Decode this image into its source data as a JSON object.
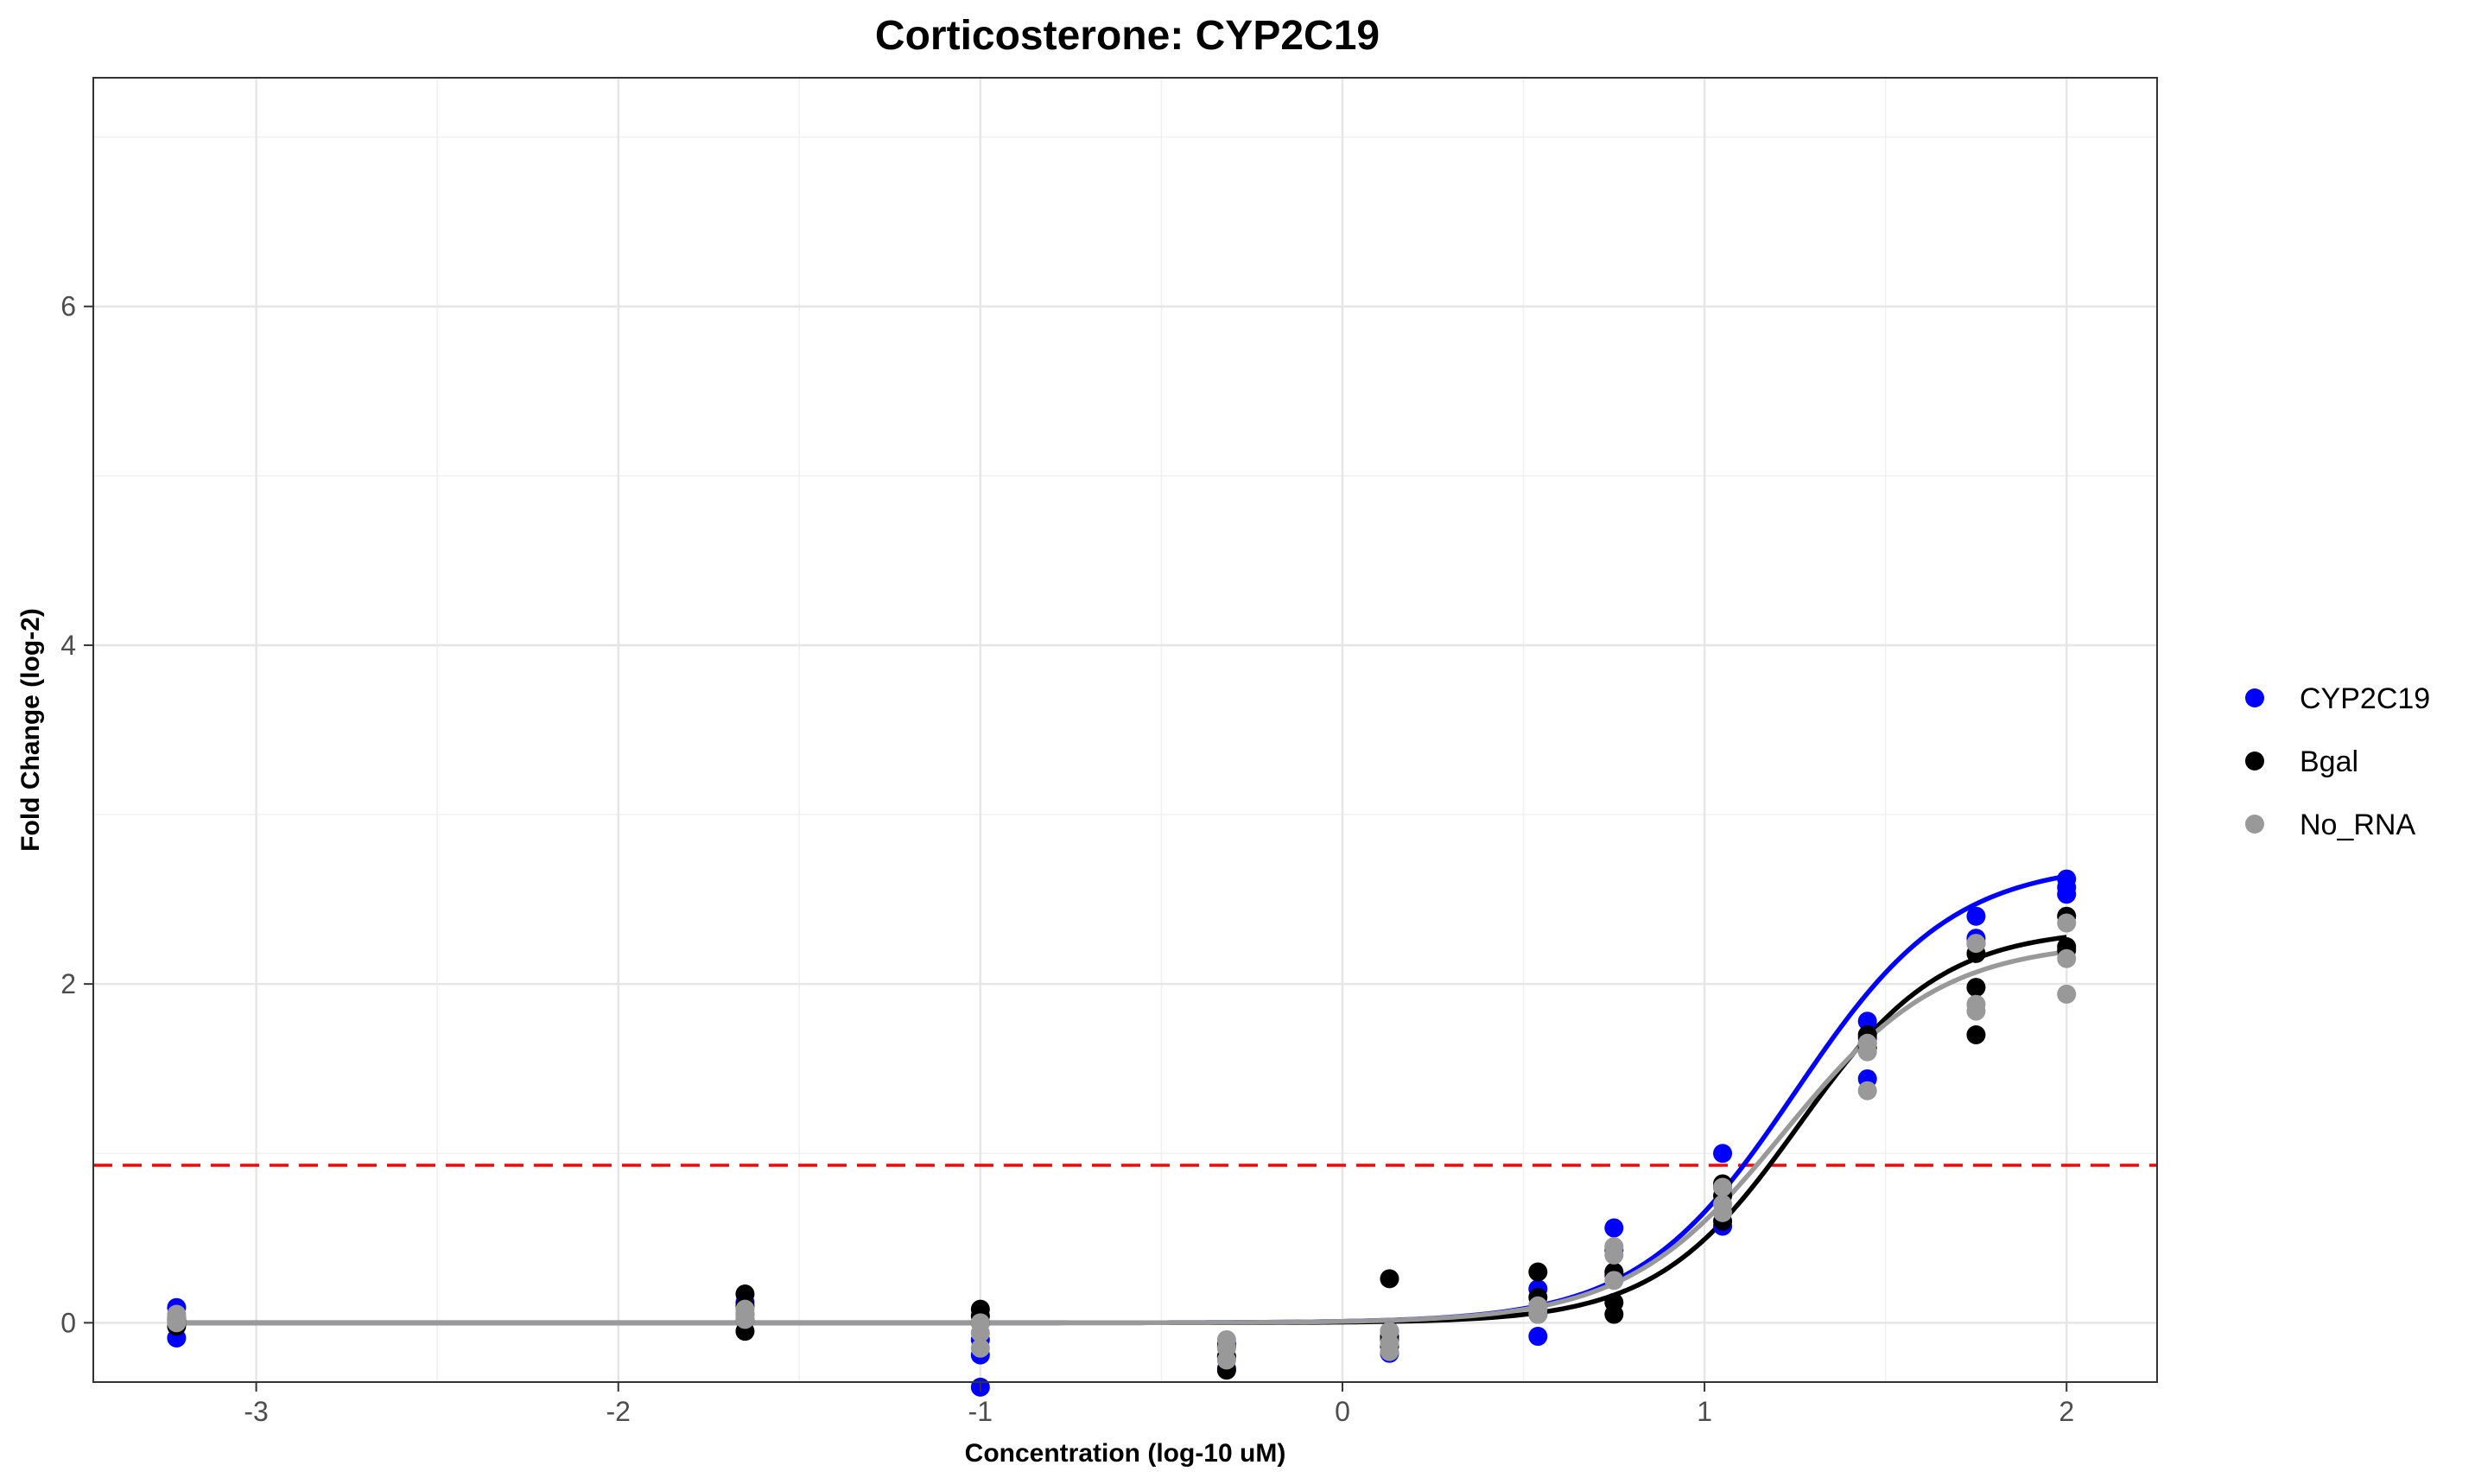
{
  "chart_data": {
    "type": "scatter",
    "title": "Corticosterone: CYP2C19",
    "xlabel": "Concentration (log-10 uM)",
    "ylabel": "Fold Change (log-2)",
    "xlim": [
      -3.45,
      2.25
    ],
    "ylim": [
      -0.35,
      7.35
    ],
    "x_ticks": [
      -3,
      -2,
      -1,
      0,
      1,
      2
    ],
    "x_tick_labels": [
      "-3",
      "-2",
      "-1",
      "0",
      "1",
      "2"
    ],
    "y_ticks": [
      0,
      2,
      4,
      6
    ],
    "y_tick_labels": [
      "0",
      "2",
      "4",
      "6"
    ],
    "grid": true,
    "legend_position": "right",
    "threshold": {
      "y": 0.93,
      "color": "#ff0000",
      "style": "dashed"
    },
    "series": [
      {
        "name": "CYP2C19",
        "color": "#0000ff",
        "points": [
          [
            -3.22,
            0.09
          ],
          [
            -3.22,
            -0.09
          ],
          [
            -3.22,
            0.03
          ],
          [
            -1.65,
            0.12
          ],
          [
            -1.65,
            0.05
          ],
          [
            -1.65,
            0.02
          ],
          [
            -1.0,
            -0.19
          ],
          [
            -1.0,
            -0.38
          ],
          [
            -1.0,
            -0.1
          ],
          [
            -0.32,
            -0.12
          ],
          [
            -0.32,
            -0.2
          ],
          [
            -0.32,
            -0.27
          ],
          [
            0.13,
            -0.1
          ],
          [
            0.13,
            -0.18
          ],
          [
            0.13,
            -0.05
          ],
          [
            0.54,
            0.2
          ],
          [
            0.54,
            -0.08
          ],
          [
            0.54,
            0.1
          ],
          [
            0.75,
            0.56
          ],
          [
            0.75,
            0.43
          ],
          [
            0.75,
            0.28
          ],
          [
            1.05,
            1.0
          ],
          [
            1.05,
            0.57
          ],
          [
            1.05,
            0.8
          ],
          [
            1.45,
            1.78
          ],
          [
            1.45,
            1.44
          ],
          [
            1.45,
            1.68
          ],
          [
            1.75,
            2.4
          ],
          [
            1.75,
            2.27
          ],
          [
            1.75,
            2.24
          ],
          [
            2.0,
            2.62
          ],
          [
            2.0,
            2.53
          ],
          [
            2.0,
            2.57
          ]
        ],
        "fit": {
          "bottom": 0.0,
          "top": 2.72,
          "ec50_log": 1.25,
          "slope": 2.0
        }
      },
      {
        "name": "Bgal",
        "color": "#000000",
        "points": [
          [
            -3.22,
            0.0
          ],
          [
            -3.22,
            0.02
          ],
          [
            -3.22,
            -0.02
          ],
          [
            -1.65,
            0.17
          ],
          [
            -1.65,
            -0.05
          ],
          [
            -1.65,
            0.1
          ],
          [
            -1.0,
            0.08
          ],
          [
            -1.0,
            0.0
          ],
          [
            -1.0,
            0.04
          ],
          [
            -0.32,
            -0.28
          ],
          [
            -0.32,
            -0.2
          ],
          [
            -0.32,
            -0.14
          ],
          [
            0.13,
            0.26
          ],
          [
            0.13,
            -0.08
          ],
          [
            0.13,
            -0.14
          ],
          [
            0.54,
            0.3
          ],
          [
            0.54,
            0.15
          ],
          [
            0.54,
            0.05
          ],
          [
            0.75,
            0.05
          ],
          [
            0.75,
            0.12
          ],
          [
            0.75,
            0.3
          ],
          [
            1.05,
            0.6
          ],
          [
            1.05,
            0.82
          ],
          [
            1.05,
            0.75
          ],
          [
            1.45,
            1.62
          ],
          [
            1.45,
            1.65
          ],
          [
            1.45,
            1.7
          ],
          [
            1.75,
            1.7
          ],
          [
            1.75,
            1.98
          ],
          [
            1.75,
            2.18
          ],
          [
            2.0,
            2.22
          ],
          [
            2.0,
            2.4
          ],
          [
            2.0,
            2.2
          ]
        ],
        "fit": {
          "bottom": 0.0,
          "top": 2.33,
          "ec50_log": 1.26,
          "slope": 2.2
        }
      },
      {
        "name": "No_RNA",
        "color": "#999999",
        "points": [
          [
            -3.22,
            0.03
          ],
          [
            -3.22,
            0.05
          ],
          [
            -3.22,
            0.0
          ],
          [
            -1.65,
            0.05
          ],
          [
            -1.65,
            0.02
          ],
          [
            -1.65,
            0.08
          ],
          [
            -1.0,
            -0.06
          ],
          [
            -1.0,
            -0.15
          ],
          [
            -1.0,
            0.0
          ],
          [
            -0.32,
            -0.15
          ],
          [
            -0.32,
            -0.22
          ],
          [
            -0.32,
            -0.1
          ],
          [
            0.13,
            -0.17
          ],
          [
            0.13,
            -0.12
          ],
          [
            0.13,
            -0.05
          ],
          [
            0.54,
            0.05
          ],
          [
            0.54,
            0.1
          ],
          [
            0.54,
            0.08
          ],
          [
            0.75,
            0.45
          ],
          [
            0.75,
            0.4
          ],
          [
            0.75,
            0.25
          ],
          [
            1.05,
            0.7
          ],
          [
            1.05,
            0.8
          ],
          [
            1.05,
            0.65
          ],
          [
            1.45,
            1.37
          ],
          [
            1.45,
            1.65
          ],
          [
            1.45,
            1.6
          ],
          [
            1.75,
            1.84
          ],
          [
            1.75,
            1.88
          ],
          [
            1.75,
            2.24
          ],
          [
            2.0,
            1.94
          ],
          [
            2.0,
            2.15
          ],
          [
            2.0,
            2.36
          ]
        ],
        "fit": {
          "bottom": 0.0,
          "top": 2.25,
          "ec50_log": 1.22,
          "slope": 2.0
        }
      }
    ]
  }
}
